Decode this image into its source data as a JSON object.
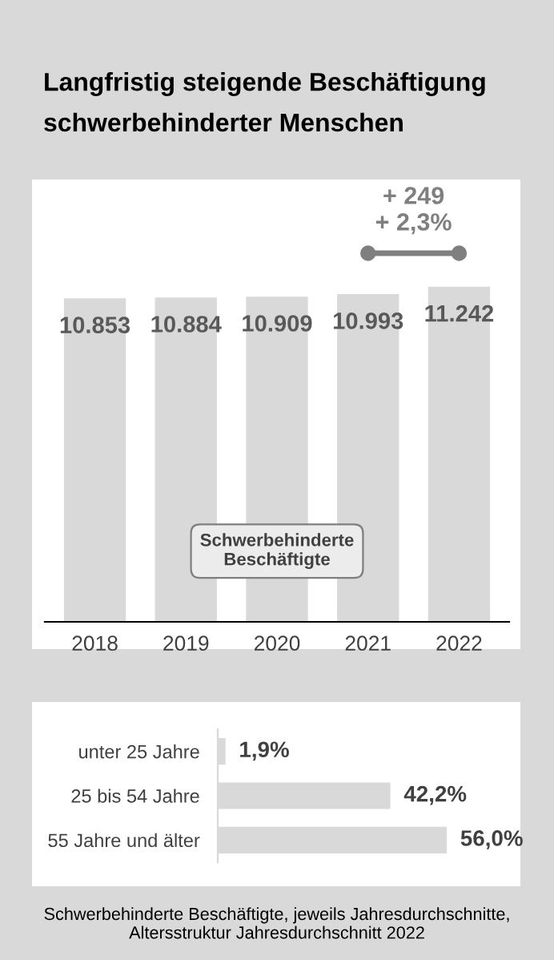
{
  "chart_data": [
    {
      "type": "bar",
      "title": "Langfristig steigende Beschäftigung\nschwerbehinderter Menschen",
      "categories": [
        "2018",
        "2019",
        "2020",
        "2021",
        "2022"
      ],
      "series": [
        {
          "color": "#d9d9d9",
          "values": [
            10853,
            10884,
            10909,
            10993,
            11242
          ],
          "value_labels": [
            "10.853",
            "10.884",
            "10.909",
            "10.993",
            "11.242"
          ]
        }
      ],
      "tick_labels": "x",
      "annotations": [
        {
          "text": "+ 249\n+ 2,3%",
          "x": "2022",
          "y": 11242
        },
        "Schwerbehinderte\nBeschäftigte"
      ]
    },
    {
      "type": "bar",
      "orientation": "horizontal",
      "categories": [
        "unter 25 Jahre",
        "25 bis 54 Jahre",
        "55 Jahre und älter"
      ],
      "series": [
        {
          "color": "#d9d9d9",
          "values": [
            1.9,
            42.2,
            56.0
          ],
          "value_labels": [
            "1,9%",
            "42,2%",
            "56,0%"
          ]
        }
      ],
      "tick_labels": "y",
      "annotations": [
        "Schwerbehinderte Beschäftigte, jeweils Jahresdurchschnitte,\nAltersstruktur Jahresdurchschnitt 2022"
      ]
    }
  ]
}
